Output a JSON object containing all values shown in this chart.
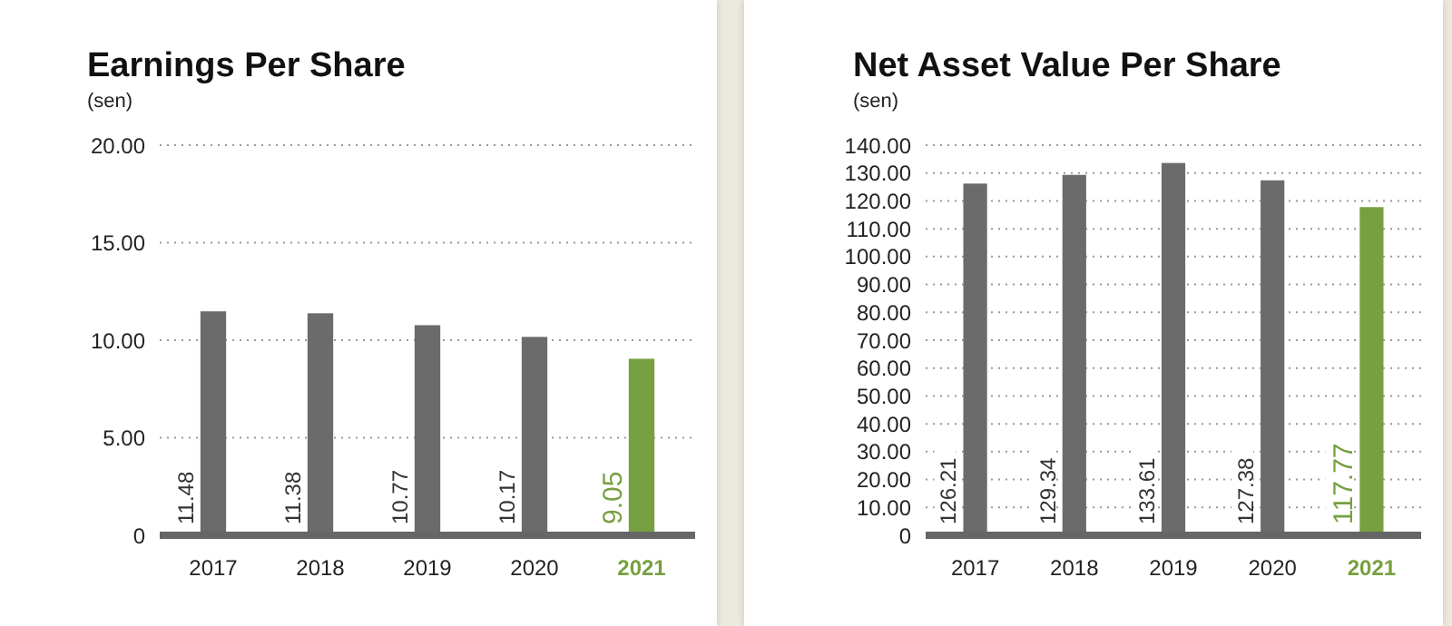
{
  "chart_data": [
    {
      "type": "bar",
      "title": "Earnings Per Share",
      "ylabel": "(sen)",
      "categories": [
        "2017",
        "2018",
        "2019",
        "2020",
        "2021"
      ],
      "values": [
        11.48,
        11.38,
        10.77,
        10.17,
        9.05
      ],
      "colors": [
        "#6b6b6b",
        "#6b6b6b",
        "#6b6b6b",
        "#6b6b6b",
        "#77a040"
      ],
      "ylim": [
        0,
        20
      ],
      "yticks": [
        0,
        {
          "value": 5,
          "label": "5.00"
        },
        {
          "value": 10,
          "label": "10.00"
        },
        {
          "value": 15,
          "label": "15.00"
        },
        {
          "value": 20,
          "label": "20.00"
        }
      ],
      "grid": "y",
      "data_labels": true,
      "legend": false
    },
    {
      "type": "bar",
      "title": "Net Asset Value Per Share",
      "ylabel": "(sen)",
      "categories": [
        "2017",
        "2018",
        "2019",
        "2020",
        "2021"
      ],
      "values": [
        126.21,
        129.34,
        133.61,
        127.38,
        117.77
      ],
      "colors": [
        "#6b6b6b",
        "#6b6b6b",
        "#6b6b6b",
        "#6b6b6b",
        "#77a040"
      ],
      "ylim": [
        0,
        140
      ],
      "yticks": [
        0,
        {
          "value": 10,
          "label": "10.00"
        },
        {
          "value": 20,
          "label": "20.00"
        },
        {
          "value": 30,
          "label": "30.00"
        },
        {
          "value": 40,
          "label": "40.00"
        },
        {
          "value": 50,
          "label": "50.00"
        },
        {
          "value": 60,
          "label": "60.00"
        },
        {
          "value": 70,
          "label": "70.00"
        },
        {
          "value": 80,
          "label": "80.00"
        },
        {
          "value": 90,
          "label": "90.00"
        },
        {
          "value": 100,
          "label": "100.00"
        },
        {
          "value": 110,
          "label": "110.00"
        },
        {
          "value": 120,
          "label": "120.00"
        },
        {
          "value": 130,
          "label": "130.00"
        },
        {
          "value": 140,
          "label": "140.00"
        }
      ],
      "grid": "y",
      "data_labels": true,
      "legend": false
    }
  ]
}
